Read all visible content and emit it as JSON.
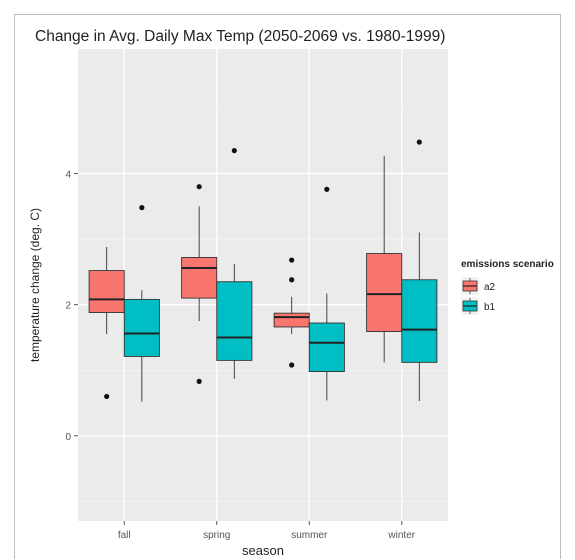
{
  "chart_data": {
    "type": "boxplot",
    "title": "Change in Avg. Daily Max Temp (2050-2069 vs. 1980-1999)",
    "xlabel": "season",
    "ylabel": "temperature change (deg. C)",
    "categories": [
      "fall",
      "spring",
      "summer",
      "winter"
    ],
    "ylim": [
      -1.3,
      5.9
    ],
    "yticks": [
      0,
      2,
      4
    ],
    "grid": true,
    "legend": {
      "title": "emissions scenario",
      "position": "right",
      "entries": [
        "a2",
        "b1"
      ]
    },
    "series": [
      {
        "name": "a2",
        "color": "#F8766D",
        "boxes": [
          {
            "category": "fall",
            "whisker_low": 1.55,
            "q1": 1.88,
            "median": 2.08,
            "q3": 2.52,
            "whisker_high": 2.88,
            "outliers": [
              0.6
            ]
          },
          {
            "category": "spring",
            "whisker_low": 1.75,
            "q1": 2.1,
            "median": 2.56,
            "q3": 2.72,
            "whisker_high": 3.5,
            "outliers": [
              3.8,
              0.83
            ]
          },
          {
            "category": "summer",
            "whisker_low": 1.55,
            "q1": 1.66,
            "median": 1.81,
            "q3": 1.87,
            "whisker_high": 2.12,
            "outliers": [
              2.68,
              2.38,
              1.08
            ]
          },
          {
            "category": "winter",
            "whisker_low": 1.12,
            "q1": 1.59,
            "median": 2.16,
            "q3": 2.78,
            "whisker_high": 4.27,
            "outliers": []
          }
        ]
      },
      {
        "name": "b1",
        "color": "#00BFC4",
        "boxes": [
          {
            "category": "fall",
            "whisker_low": 0.52,
            "q1": 1.21,
            "median": 1.56,
            "q3": 2.08,
            "whisker_high": 2.22,
            "outliers": [
              3.48
            ]
          },
          {
            "category": "spring",
            "whisker_low": 0.87,
            "q1": 1.15,
            "median": 1.5,
            "q3": 2.35,
            "whisker_high": 2.62,
            "outliers": [
              4.35
            ]
          },
          {
            "category": "summer",
            "whisker_low": 0.54,
            "q1": 0.98,
            "median": 1.42,
            "q3": 1.72,
            "whisker_high": 2.17,
            "outliers": [
              3.76
            ]
          },
          {
            "category": "winter",
            "whisker_low": 0.53,
            "q1": 1.12,
            "median": 1.62,
            "q3": 2.38,
            "whisker_high": 3.1,
            "outliers": [
              4.48
            ]
          }
        ]
      }
    ]
  }
}
